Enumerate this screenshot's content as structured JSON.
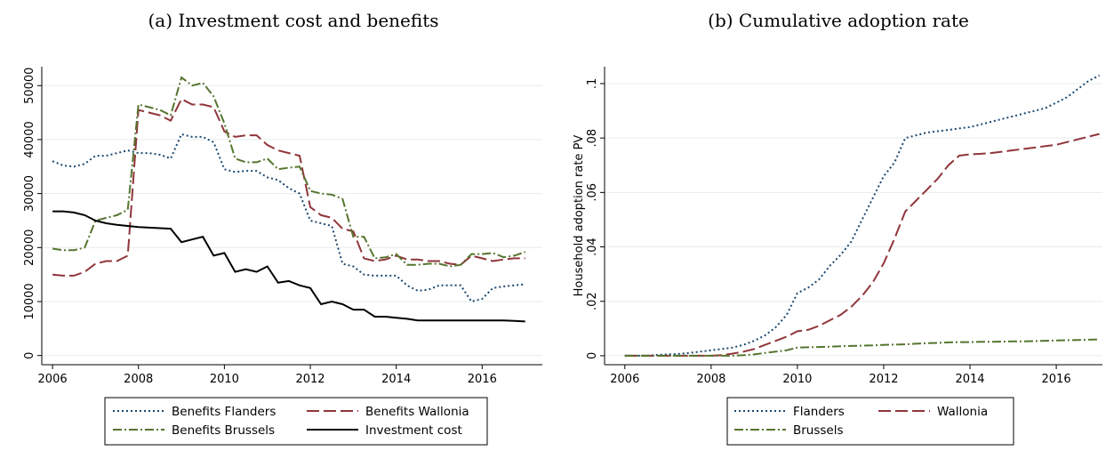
{
  "chart_data": [
    {
      "type": "line",
      "title": "(a) Investment cost and benefits",
      "x": [
        2006,
        2006.25,
        2006.5,
        2006.75,
        2007,
        2007.25,
        2007.5,
        2007.75,
        2008,
        2008.25,
        2008.5,
        2008.75,
        2009,
        2009.25,
        2009.5,
        2009.75,
        2010,
        2010.25,
        2010.5,
        2010.75,
        2011,
        2011.25,
        2011.5,
        2011.75,
        2012,
        2012.25,
        2012.5,
        2012.75,
        2013,
        2013.25,
        2013.5,
        2013.75,
        2014,
        2014.25,
        2014.5,
        2014.75,
        2015,
        2015.25,
        2015.5,
        2015.75,
        2016,
        2016.25,
        2016.5,
        2016.75,
        2017
      ],
      "series": [
        {
          "name": "Benefits Flanders",
          "color": "#1a476f",
          "line_style": "dotted",
          "values": [
            36000,
            35200,
            35000,
            35500,
            37000,
            37000,
            37500,
            38000,
            37500,
            37500,
            37200,
            36500,
            41000,
            40500,
            40500,
            39500,
            34500,
            34000,
            34200,
            34200,
            33000,
            32500,
            31000,
            30000,
            25000,
            24500,
            24000,
            17000,
            16500,
            15000,
            14800,
            14800,
            14800,
            13000,
            12000,
            12200,
            13000,
            13000,
            13000,
            10000,
            10500,
            12500,
            12800,
            13000,
            13200
          ]
        },
        {
          "name": "Benefits Wallonia",
          "color": "#90353b",
          "line_style": "long-dash",
          "values": [
            15000,
            14800,
            14800,
            15500,
            17000,
            17500,
            17500,
            18500,
            45500,
            45000,
            44500,
            43500,
            47500,
            46500,
            46500,
            46000,
            41500,
            40500,
            40800,
            40800,
            39000,
            38000,
            37500,
            37000,
            27500,
            26000,
            25500,
            23500,
            23000,
            18000,
            17500,
            17800,
            18500,
            17800,
            17800,
            17500,
            17500,
            17000,
            16800,
            18500,
            18000,
            17500,
            17800,
            18000,
            18000
          ]
        },
        {
          "name": "Benefits Brussels",
          "color": "#55752f",
          "line_style": "dash-dot",
          "values": [
            19800,
            19500,
            19500,
            20000,
            25000,
            25500,
            26000,
            27000,
            46500,
            46000,
            45500,
            44500,
            51500,
            50000,
            50500,
            48000,
            43000,
            36500,
            35800,
            35800,
            36500,
            34500,
            34800,
            35000,
            30500,
            30000,
            29800,
            29000,
            22000,
            22000,
            18000,
            18200,
            18800,
            16800,
            16800,
            17000,
            17000,
            16500,
            16800,
            18800,
            18800,
            19000,
            18200,
            18500,
            19200
          ]
        },
        {
          "name": "Investment cost",
          "color": "#000000",
          "line_style": "solid",
          "values": [
            26700,
            26700,
            26500,
            26000,
            25000,
            24500,
            24200,
            24000,
            23800,
            23700,
            23600,
            23500,
            21000,
            21500,
            22000,
            18500,
            19000,
            15500,
            16000,
            15500,
            16500,
            13500,
            13800,
            13000,
            12500,
            9500,
            10000,
            9500,
            8500,
            8500,
            7200,
            7200,
            7000,
            6800,
            6500,
            6500,
            6500,
            6500,
            6500,
            6500,
            6500,
            6500,
            6500,
            6400,
            6300
          ]
        }
      ],
      "xlim": [
        2005.75,
        2017.4
      ],
      "xticks": [
        2006,
        2008,
        2010,
        2012,
        2014,
        2016
      ],
      "ylim": [
        -1700,
        53500
      ],
      "yticks": [
        0,
        10000,
        20000,
        30000,
        40000,
        50000
      ],
      "grid": true
    },
    {
      "type": "line",
      "title": "(b) Cumulative adoption rate",
      "y_label": "Household adoption rate PV",
      "x": [
        2006,
        2006.25,
        2006.5,
        2006.75,
        2007,
        2007.25,
        2007.5,
        2007.75,
        2008,
        2008.25,
        2008.5,
        2008.75,
        2009,
        2009.25,
        2009.5,
        2009.75,
        2010,
        2010.25,
        2010.5,
        2010.75,
        2011,
        2011.25,
        2011.5,
        2011.75,
        2012,
        2012.25,
        2012.5,
        2012.75,
        2013,
        2013.25,
        2013.5,
        2013.75,
        2014,
        2014.25,
        2014.5,
        2014.75,
        2015,
        2015.25,
        2015.5,
        2015.75,
        2016,
        2016.25,
        2016.5,
        2016.75,
        2017
      ],
      "series": [
        {
          "name": "Flanders",
          "color": "#1a476f",
          "line_style": "dotted",
          "values": [
            0,
            0,
            0,
            0.0003,
            0.0005,
            0.0007,
            0.001,
            0.0015,
            0.002,
            0.0025,
            0.003,
            0.004,
            0.0055,
            0.0075,
            0.0105,
            0.015,
            0.023,
            0.025,
            0.028,
            0.033,
            0.037,
            0.042,
            0.05,
            0.058,
            0.066,
            0.071,
            0.08,
            0.081,
            0.082,
            0.0825,
            0.083,
            0.0835,
            0.084,
            0.085,
            0.086,
            0.087,
            0.088,
            0.089,
            0.09,
            0.091,
            0.093,
            0.095,
            0.098,
            0.101,
            0.103
          ]
        },
        {
          "name": "Wallonia",
          "color": "#90353b",
          "line_style": "long-dash",
          "values": [
            0,
            0,
            0,
            0,
            0,
            0,
            0,
            0,
            0,
            0.0002,
            0.0008,
            0.0015,
            0.0025,
            0.004,
            0.0055,
            0.007,
            0.009,
            0.0095,
            0.011,
            0.013,
            0.015,
            0.018,
            0.022,
            0.027,
            0.034,
            0.043,
            0.053,
            0.057,
            0.061,
            0.065,
            0.07,
            0.0735,
            0.074,
            0.0742,
            0.0745,
            0.075,
            0.0755,
            0.076,
            0.0765,
            0.077,
            0.0775,
            0.0785,
            0.0795,
            0.0805,
            0.0815
          ]
        },
        {
          "name": "Brussels",
          "color": "#55752f",
          "line_style": "dash-dot",
          "values": [
            0,
            0,
            0,
            0,
            0,
            0,
            0,
            0,
            0,
            0,
            0,
            0.0002,
            0.0005,
            0.001,
            0.0015,
            0.002,
            0.003,
            0.0031,
            0.0032,
            0.0033,
            0.0035,
            0.0036,
            0.0037,
            0.0038,
            0.004,
            0.0041,
            0.0042,
            0.0044,
            0.0046,
            0.0047,
            0.0049,
            0.005,
            0.005,
            0.0051,
            0.0051,
            0.0052,
            0.0053,
            0.0053,
            0.0054,
            0.0055,
            0.0056,
            0.0057,
            0.0058,
            0.0059,
            0.006
          ]
        }
      ],
      "xlim": [
        2005.53,
        2017.07
      ],
      "xticks": [
        2006,
        2008,
        2010,
        2012,
        2014,
        2016
      ],
      "ylim": [
        -0.0033,
        0.1062
      ],
      "yticks": [
        0,
        {
          "value": 0.02,
          "label": ".02"
        },
        {
          "value": 0.04,
          "label": ".04"
        },
        {
          "value": 0.06,
          "label": ".06"
        },
        {
          "value": 0.08,
          "label": ".08"
        },
        {
          "value": 0.1,
          "label": ".1"
        }
      ],
      "grid": true
    }
  ]
}
